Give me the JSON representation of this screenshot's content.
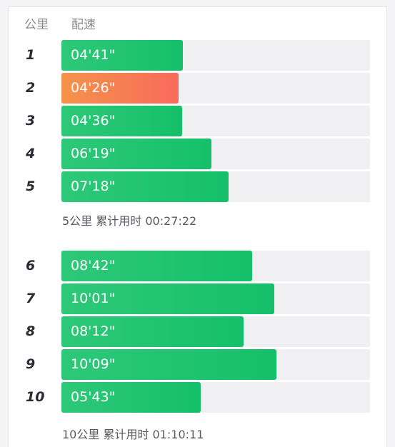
{
  "header": {
    "km_label": "公里",
    "pace_label": "配速"
  },
  "colors": {
    "normal_bar": "#15c06a",
    "fastest_bar": "#f86a5c",
    "track": "#f0f0f2"
  },
  "splits": [
    {
      "km": "1",
      "pace": "04'41\"",
      "ratio": 0.394,
      "fastest": false
    },
    {
      "km": "2",
      "pace": "04'26\"",
      "ratio": 0.38,
      "fastest": true
    },
    {
      "km": "3",
      "pace": "04'36\"",
      "ratio": 0.391,
      "fastest": false
    },
    {
      "km": "4",
      "pace": "06'19\"",
      "ratio": 0.486,
      "fastest": false
    },
    {
      "km": "5",
      "pace": "07'18\"",
      "ratio": 0.541,
      "fastest": false
    },
    {
      "km": "6",
      "pace": "08'42\"",
      "ratio": 0.618,
      "fastest": false
    },
    {
      "km": "7",
      "pace": "10'01\"",
      "ratio": 0.69,
      "fastest": false
    },
    {
      "km": "8",
      "pace": "08'12\"",
      "ratio": 0.59,
      "fastest": false
    },
    {
      "km": "9",
      "pace": "10'09\"",
      "ratio": 0.697,
      "fastest": false
    },
    {
      "km": "10",
      "pace": "05'43\"",
      "ratio": 0.451,
      "fastest": false
    }
  ],
  "summaries": [
    {
      "text": "5公里 累计用时 00:27:22"
    },
    {
      "text": "10公里 累计用时 01:10:11"
    }
  ]
}
